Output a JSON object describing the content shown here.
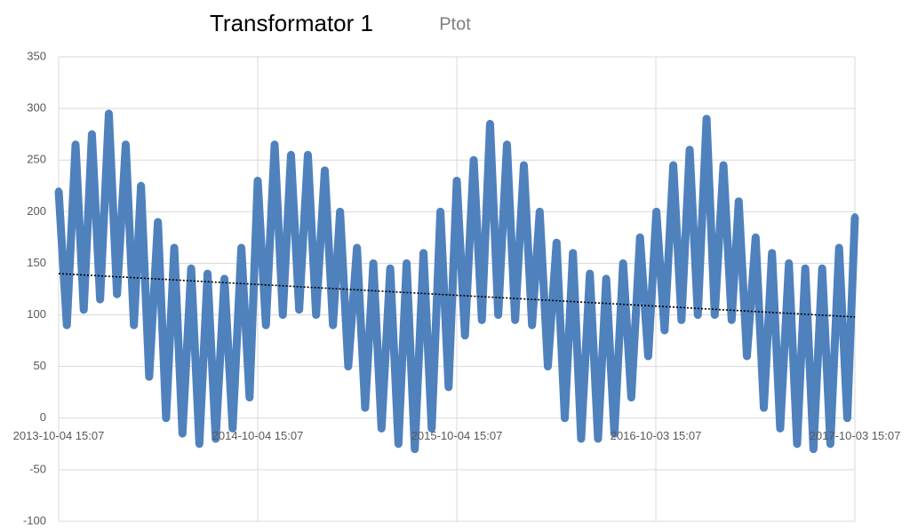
{
  "chart_data": {
    "type": "line",
    "title": "Transformator 1",
    "subtitle": "Ptot",
    "x": [
      "2013-10-04 15:07",
      "2013-10-19 15:07",
      "2013-11-04 15:07",
      "2013-11-19 15:07",
      "2013-12-04 15:07",
      "2013-12-19 15:07",
      "2014-01-04 15:07",
      "2014-01-19 15:07",
      "2014-02-04 15:07",
      "2014-02-19 15:07",
      "2014-03-04 15:07",
      "2014-03-19 15:07",
      "2014-04-04 15:07",
      "2014-04-19 15:07",
      "2014-05-04 15:07",
      "2014-05-19 15:07",
      "2014-06-04 15:07",
      "2014-06-19 15:07",
      "2014-07-04 15:07",
      "2014-07-19 15:07",
      "2014-08-04 15:07",
      "2014-08-19 15:07",
      "2014-09-04 15:07",
      "2014-09-19 15:07",
      "2014-10-04 15:07",
      "2014-10-19 15:07",
      "2014-11-04 15:07",
      "2014-11-19 15:07",
      "2014-12-04 15:07",
      "2014-12-19 15:07",
      "2015-01-04 15:07",
      "2015-01-19 15:07",
      "2015-02-04 15:07",
      "2015-02-19 15:07",
      "2015-03-04 15:07",
      "2015-03-19 15:07",
      "2015-04-04 15:07",
      "2015-04-19 15:07",
      "2015-05-04 15:07",
      "2015-05-19 15:07",
      "2015-06-04 15:07",
      "2015-06-19 15:07",
      "2015-07-04 15:07",
      "2015-07-19 15:07",
      "2015-08-04 15:07",
      "2015-08-19 15:07",
      "2015-09-04 15:07",
      "2015-09-19 15:07",
      "2015-10-04 15:07",
      "2015-10-19 15:07",
      "2015-11-04 15:07",
      "2015-11-19 15:07",
      "2015-12-04 15:07",
      "2015-12-19 15:07",
      "2016-01-04 15:07",
      "2016-01-19 15:07",
      "2016-02-04 15:07",
      "2016-02-19 15:07",
      "2016-03-04 15:07",
      "2016-03-19 15:07",
      "2016-04-04 15:07",
      "2016-04-19 15:07",
      "2016-05-04 15:07",
      "2016-05-19 15:07",
      "2016-06-04 15:07",
      "2016-06-19 15:07",
      "2016-07-04 15:07",
      "2016-07-19 15:07",
      "2016-08-04 15:07",
      "2016-08-19 15:07",
      "2016-09-04 15:07",
      "2016-09-19 15:07",
      "2016-10-04 15:07",
      "2016-10-19 15:07",
      "2016-11-04 15:07",
      "2016-11-19 15:07",
      "2016-12-04 15:07",
      "2016-12-19 15:07",
      "2017-01-04 15:07",
      "2017-01-19 15:07",
      "2017-02-04 15:07",
      "2017-02-19 15:07",
      "2017-03-04 15:07",
      "2017-03-19 15:07",
      "2017-04-04 15:07",
      "2017-04-19 15:07",
      "2017-05-04 15:07",
      "2017-05-19 15:07",
      "2017-06-04 15:07",
      "2017-06-19 15:07",
      "2017-07-04 15:07",
      "2017-07-19 15:07",
      "2017-08-04 15:07",
      "2017-08-19 15:07",
      "2017-09-04 15:07",
      "2017-09-19 15:07",
      "2017-10-03 15:07"
    ],
    "series": [
      {
        "color": "#4f81bd",
        "values": [
          220,
          90,
          265,
          105,
          275,
          115,
          295,
          120,
          265,
          90,
          225,
          40,
          190,
          0,
          165,
          -15,
          145,
          -25,
          140,
          -20,
          135,
          -10,
          165,
          20,
          230,
          90,
          265,
          100,
          255,
          105,
          255,
          100,
          240,
          90,
          200,
          50,
          165,
          10,
          150,
          -10,
          145,
          -25,
          150,
          -30,
          160,
          -10,
          200,
          30,
          230,
          80,
          250,
          95,
          285,
          100,
          265,
          95,
          245,
          90,
          200,
          50,
          170,
          0,
          160,
          -20,
          140,
          -20,
          135,
          -15,
          150,
          20,
          175,
          60,
          200,
          85,
          245,
          95,
          260,
          100,
          290,
          100,
          245,
          95,
          210,
          60,
          175,
          10,
          160,
          -10,
          150,
          -25,
          145,
          -30,
          145,
          -25,
          165,
          0,
          195
        ]
      }
    ],
    "trendline": {
      "color": "#000000",
      "x": [
        "2013-10-04 15:07",
        "2017-10-03 15:07"
      ],
      "values": [
        140,
        98
      ]
    },
    "xlim": [
      "2013-10-04 15:07",
      "2017-10-03 15:07"
    ],
    "xticks": [
      "2013-10-04 15:07",
      "2014-10-04 15:07",
      "2015-10-04 15:07",
      "2016-10-03 15:07",
      "2017-10-03 15:07"
    ],
    "ylim": [
      -100,
      350
    ],
    "yticks": [
      -100,
      -50,
      0,
      50,
      100,
      150,
      200,
      250,
      300,
      350
    ],
    "grid": true
  }
}
